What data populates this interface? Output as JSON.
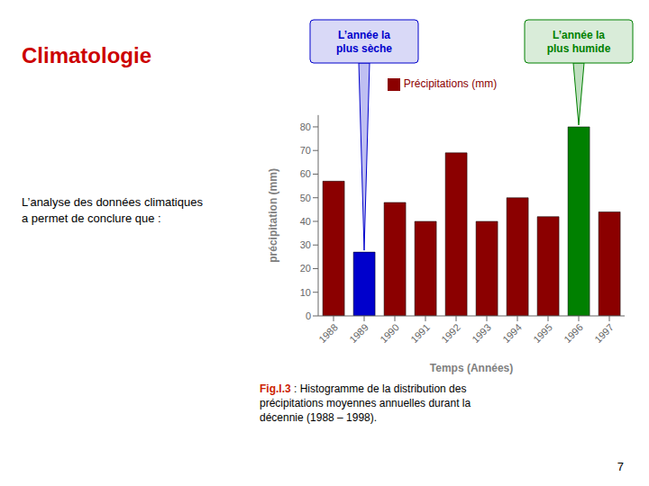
{
  "chart_data": {
    "type": "bar",
    "title": "Climatologie",
    "subtitle": "L’analyse des données climatiques\na permet de conclure que :",
    "x_label": "Temps (Années)",
    "y_label": "précipitation (mm)",
    "categories": [
      "1988",
      "1989",
      "1990",
      "1991",
      "1992",
      "1993",
      "1994",
      "1995",
      "1996",
      "1997"
    ],
    "values": [
      57,
      27,
      48,
      40,
      69,
      40,
      50,
      42,
      80,
      44
    ],
    "colors": [
      "#8B0000",
      "#0000CC",
      "#8B0000",
      "#8B0000",
      "#8B0000",
      "#8B0000",
      "#8B0000",
      "#8B0000",
      "#008000",
      "#8B0000"
    ],
    "legend_label": "Précipitations (mm)",
    "color": "#8B0000",
    "legend": "upper center",
    "ylim": [
      0,
      85
    ],
    "yticks": [
      0,
      10,
      20,
      30,
      40,
      50,
      60,
      70,
      80
    ],
    "grid": false,
    "annotations": [
      {
        "text": "L’année la\nplus sèche",
        "category": "1989"
      },
      {
        "text": "L’année la\nplus humide",
        "category": "1996"
      },
      {
        "text": "Fig.I.3"
      },
      {
        "text": " : Histogramme de la distribution des\nprécipitations moyennes annuelles durant la\ndécennie (1988 – 1998)."
      },
      {
        "text": "7"
      }
    ]
  }
}
